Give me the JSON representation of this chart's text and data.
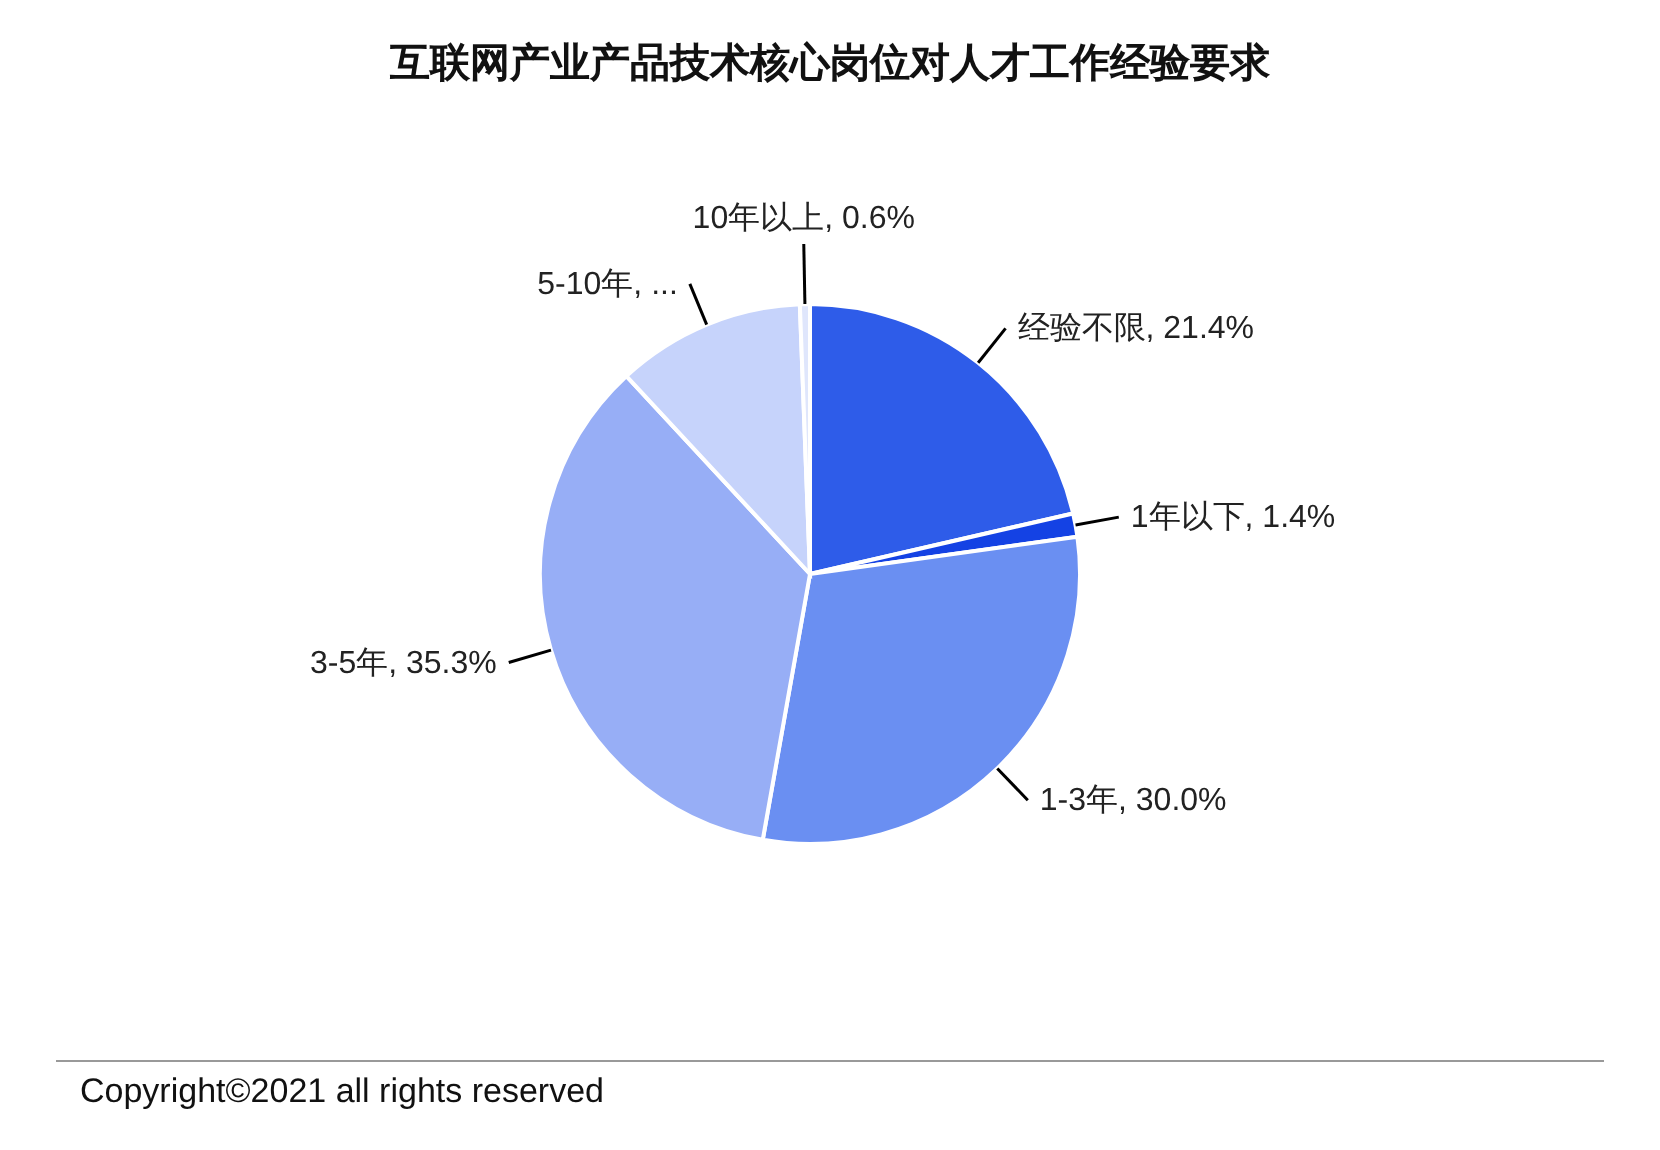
{
  "chart_data": {
    "type": "pie",
    "title": "互联网产业产品技术核心岗位对人才工作经验要求",
    "categories": [
      "经验不限",
      "1年以下",
      "1-3年",
      "3-5年",
      "5-10年",
      "10年以上"
    ],
    "values": [
      21.4,
      1.4,
      30.0,
      35.3,
      11.3,
      0.6
    ],
    "value_labels": [
      "21.4%",
      "1.4%",
      "30.0%",
      "35.3%",
      "...",
      "0.6%"
    ],
    "colors": [
      "#2e5ce9",
      "#1442e4",
      "#6a8ff2",
      "#97aef6",
      "#c6d3fb",
      "#dfe6fc"
    ],
    "annotations": [
      "Copyright©2021 all rights reserved"
    ]
  }
}
